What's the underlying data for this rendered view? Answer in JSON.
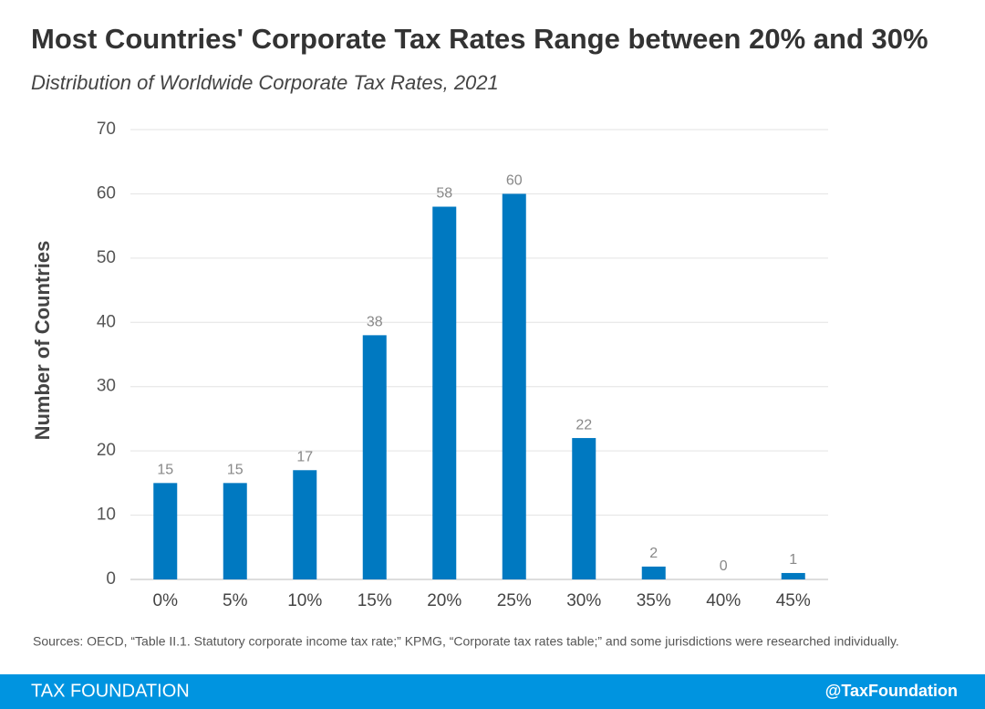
{
  "chart_data": {
    "type": "bar",
    "title": "Most Countries' Corporate Tax Rates Range between 20% and 30%",
    "subtitle": "Distribution of Worldwide Corporate Tax Rates, 2021",
    "y_label": "Number of Countries",
    "categories": [
      "0%",
      "5%",
      "10%",
      "15%",
      "20%",
      "25%",
      "30%",
      "35%",
      "40%",
      "45%"
    ],
    "values": [
      15,
      15,
      17,
      38,
      58,
      60,
      22,
      2,
      0,
      1
    ],
    "color": "#0079c1",
    "ylim": [
      0,
      70
    ],
    "yticks": [
      0,
      10,
      20,
      30,
      40,
      50,
      60,
      70
    ],
    "grid": true,
    "source": "Sources: OECD, “Table II.1. Statutory corporate income tax rate;” KPMG, “Corporate tax rates table;” and some jurisdictions were researched individually."
  },
  "footer": {
    "left": "TAX FOUNDATION",
    "right": "@TaxFoundation"
  }
}
